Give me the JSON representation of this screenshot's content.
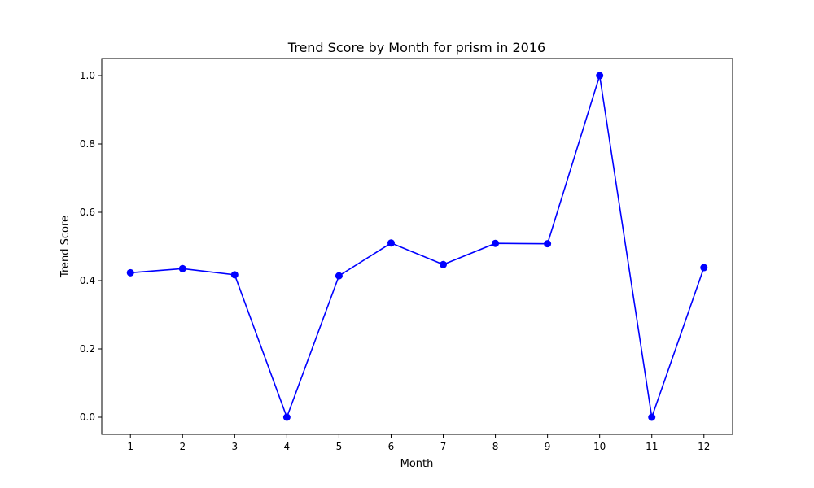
{
  "chart_data": {
    "type": "line",
    "title": "Trend Score by Month for prism in 2016",
    "xlabel": "Month",
    "ylabel": "Trend Score",
    "x": [
      1,
      2,
      3,
      4,
      5,
      6,
      7,
      8,
      9,
      10,
      11,
      12
    ],
    "series": [
      {
        "values": [
          0.423,
          0.435,
          0.417,
          0.0,
          0.414,
          0.51,
          0.447,
          0.509,
          0.508,
          1.0,
          0.0,
          0.438
        ],
        "color": "#0000ff",
        "marker": "circle"
      }
    ],
    "xticks": [
      "1",
      "2",
      "3",
      "4",
      "5",
      "6",
      "7",
      "8",
      "9",
      "10",
      "11",
      "12"
    ],
    "yticks": [
      "0.0",
      "0.2",
      "0.4",
      "0.6",
      "0.8",
      "1.0"
    ],
    "ytick_values": [
      0.0,
      0.2,
      0.4,
      0.6,
      0.8,
      1.0
    ],
    "xlim": [
      0.45,
      12.55
    ],
    "ylim": [
      -0.05,
      1.05
    ],
    "grid": false,
    "legend": false
  }
}
